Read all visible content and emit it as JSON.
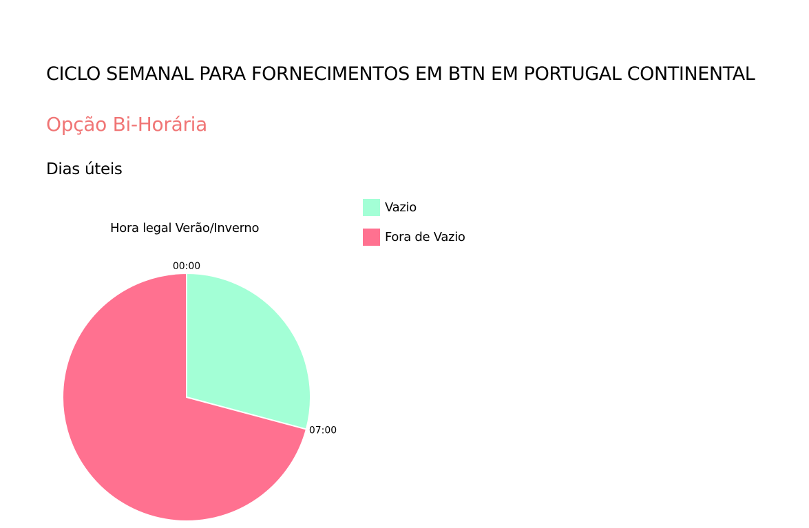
{
  "page": {
    "title": "CICLO SEMANAL PARA FORNECIMENTOS EM BTN EM PORTUGAL CONTINENTAL",
    "option": "Opção Bi-Horária",
    "section": "Dias úteis"
  },
  "colors": {
    "option_title": "#f07575",
    "vazio": "#a3ffd6",
    "fora_de_vazio": "#ff7190"
  },
  "chart_data": {
    "type": "pie",
    "title": "Hora legal Verão/Inverno",
    "legend_position": "top-right",
    "slices": [
      {
        "name": "Vazio",
        "value": 7,
        "start": "00:00",
        "end": "07:00",
        "color": "#a3ffd6"
      },
      {
        "name": "Fora de Vazio",
        "value": 17,
        "start": "07:00",
        "end": "24:00",
        "color": "#ff7190"
      }
    ],
    "tick_labels": [
      "00:00",
      "07:00"
    ],
    "total_hours": 24
  }
}
